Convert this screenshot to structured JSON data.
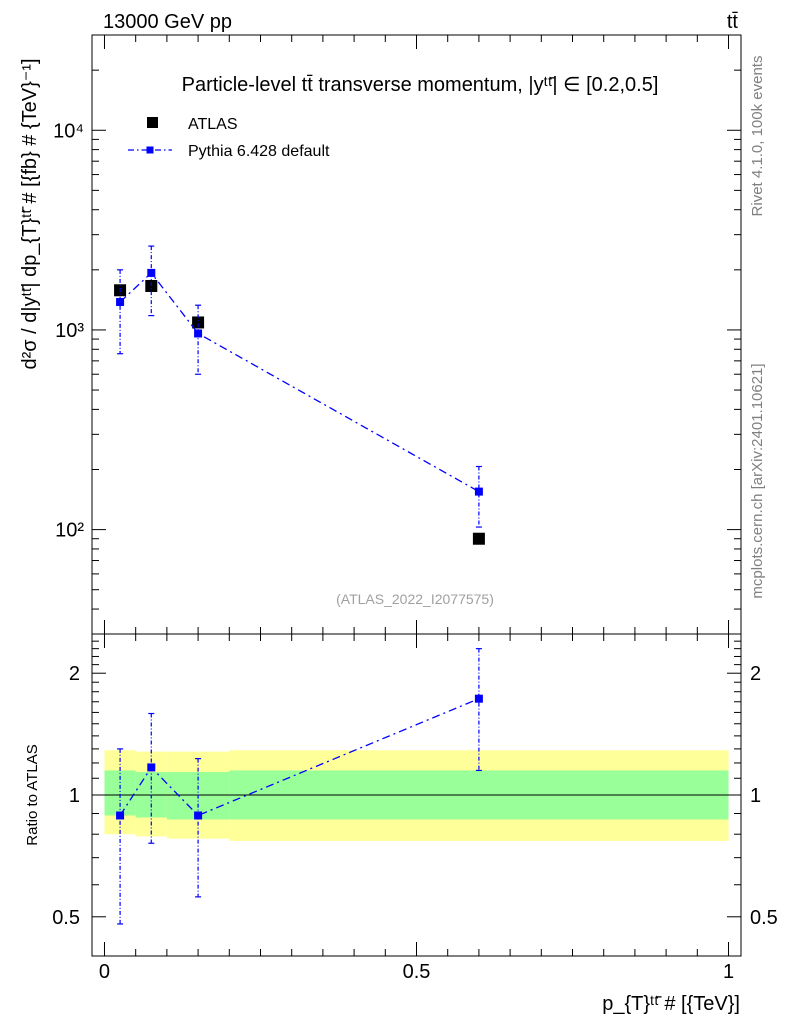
{
  "chart_data": [
    {
      "type": "scatter",
      "panel": "main",
      "energy_label": "13000 GeV pp",
      "process_label": "tt̄",
      "title": "Particle-level tt̄ transverse momentum, |yᵗᵗ̄| ∈ [0.2,0.5]",
      "ylabel": "d²σ / d|yᵗᵗ̄| dp_{T}ᵗᵗ̄ # [{fb} # {TeV}⁻¹]",
      "xlabel": "",
      "yscale": "log",
      "ylim": [
        30,
        30000
      ],
      "xlim": [
        -0.02,
        1.02
      ],
      "y_ticks": [
        {
          "value": 100,
          "label": "10²"
        },
        {
          "value": 1000,
          "label": "10³"
        },
        {
          "value": 10000,
          "label": "10⁴"
        }
      ],
      "legend": [
        {
          "name": "ATLAS",
          "marker": "square",
          "color": "#000000"
        },
        {
          "name": "Pythia 6.428 default",
          "marker": "square",
          "color": "#0000ff",
          "line": "dash-dot"
        }
      ],
      "series": [
        {
          "name": "ATLAS",
          "x": [
            0.025,
            0.075,
            0.15,
            0.6
          ],
          "y": [
            1580,
            1660,
            1090,
            90
          ]
        },
        {
          "name": "Pythia 6.428 default",
          "x": [
            0.025,
            0.075,
            0.15,
            0.6
          ],
          "y": [
            1380,
            1930,
            960,
            155
          ],
          "yerr_low": [
            620,
            750,
            360,
            52
          ],
          "yerr_high": [
            620,
            700,
            370,
            52
          ]
        }
      ],
      "watermark": "(ATLAS_2022_I2077575)",
      "side_labels": [
        "Rivet 4.1.0,  100k events",
        "mcplots.cern.ch [arXiv:2401.10621]"
      ]
    },
    {
      "type": "scatter",
      "panel": "ratio",
      "ylabel": "Ratio to ATLAS",
      "xlabel": "p_{T}ᵗᵗ̄ # [{TeV}]",
      "yscale": "log",
      "ylim": [
        0.4,
        2.5
      ],
      "xlim": [
        -0.02,
        1.02
      ],
      "x_ticks": [
        {
          "value": 0,
          "label": "0"
        },
        {
          "value": 0.5,
          "label": "0.5"
        },
        {
          "value": 1,
          "label": "1"
        }
      ],
      "y_ticks": [
        {
          "value": 0.5,
          "label": "0.5"
        },
        {
          "value": 1,
          "label": "1"
        },
        {
          "value": 2,
          "label": "2"
        }
      ],
      "bands": [
        {
          "x": [
            0,
            0.05,
            0.1,
            0.2,
            1
          ],
          "y_low_outer": [
            0.8,
            0.79,
            0.78,
            0.77,
            0.77
          ],
          "y_high_outer": [
            1.29,
            1.28,
            1.28,
            1.29,
            1.29
          ],
          "y_low_inner": [
            0.89,
            0.88,
            0.87,
            0.87,
            0.87
          ],
          "y_high_inner": [
            1.15,
            1.14,
            1.14,
            1.15,
            1.15
          ]
        }
      ],
      "series": [
        {
          "name": "Pythia 6.428 default",
          "x": [
            0.025,
            0.075,
            0.15,
            0.6
          ],
          "y": [
            0.89,
            1.17,
            0.89,
            1.73
          ],
          "yerr_low": [
            0.41,
            0.41,
            0.33,
            0.58
          ],
          "yerr_high": [
            0.41,
            0.42,
            0.34,
            0.57
          ]
        }
      ]
    }
  ]
}
